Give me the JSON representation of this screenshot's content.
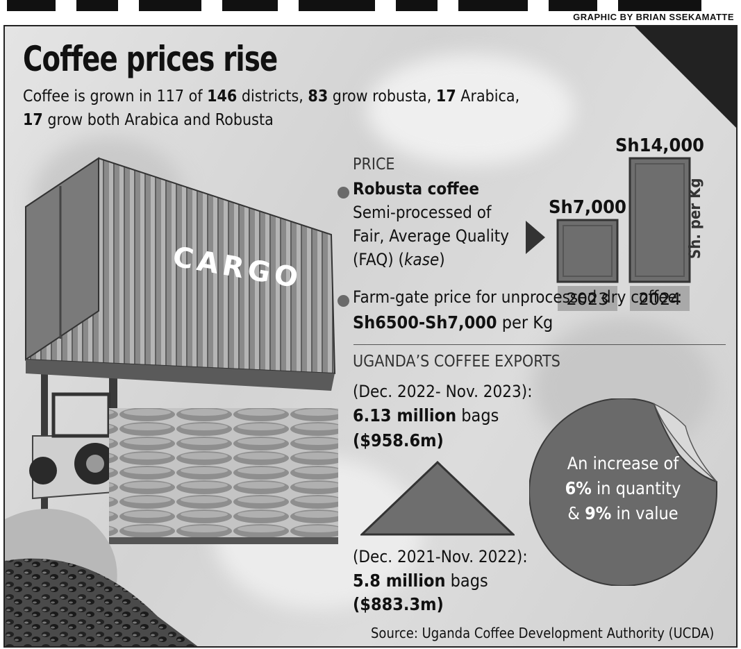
{
  "credit": "GRAPHIC BY BRIAN SSEKAMATTE",
  "title": "Coffee prices rise",
  "intro": {
    "p1": "Coffee is grown in 117 of ",
    "b1": "146",
    "p2": " districts, ",
    "b2": "83",
    "p3": " grow robusta, ",
    "b3": "17",
    "p4": " Arabica,",
    "b4": "17",
    "p5": " grow both Arabica and Robusta"
  },
  "photo": {
    "cargo_text": "CARGO"
  },
  "price": {
    "heading": "PRICE",
    "robusta_label": "Robusta coffee",
    "desc_line1": "Semi-processed of",
    "desc_line2": "Fair, Average Quality",
    "desc_line3a": "(FAQ) (",
    "desc_line3b": "kase",
    "desc_line3c": ")",
    "unit_label": "Sh. per Kg",
    "farmgate_label": "Farm-gate price for unprocessed dry coffee:",
    "farmgate_value": "Sh6500-Sh7,000",
    "farmgate_unit": " per Kg"
  },
  "exports": {
    "heading": "UGANDA’S COFFEE EXPORTS",
    "recent_period": "(Dec. 2022- Nov. 2023):",
    "recent_qty": "6.13 million",
    "recent_qty_unit": " bags",
    "recent_value": "($958.6m)",
    "prior_period": "(Dec. 2021-Nov. 2022):",
    "prior_qty": "5.8 million",
    "prior_qty_unit": " bags",
    "prior_value": "($883.3m)",
    "sticker_l1": "An increase of",
    "sticker_l2_b": "6%",
    "sticker_l2": " in quantity",
    "sticker_l3_a": "& ",
    "sticker_l3_b": "9%",
    "sticker_l3": " in value"
  },
  "source": "Source: Uganda Coffee Development Authority (UCDA)",
  "colors": {
    "bar_fill": "#6e6e6e",
    "label_box": "#a9a9a9",
    "ink": "#111111",
    "sticker": "#6a6a6a"
  },
  "chart_data": {
    "type": "bar",
    "title": "PRICE",
    "xlabel": "",
    "ylabel": "Sh. per Kg",
    "categories": [
      "2023",
      "2024"
    ],
    "values": [
      7000,
      14000
    ],
    "value_labels": [
      "Sh7,000",
      "Sh14,000"
    ],
    "ylim": [
      0,
      14000
    ],
    "grid": false,
    "legend": "none"
  }
}
